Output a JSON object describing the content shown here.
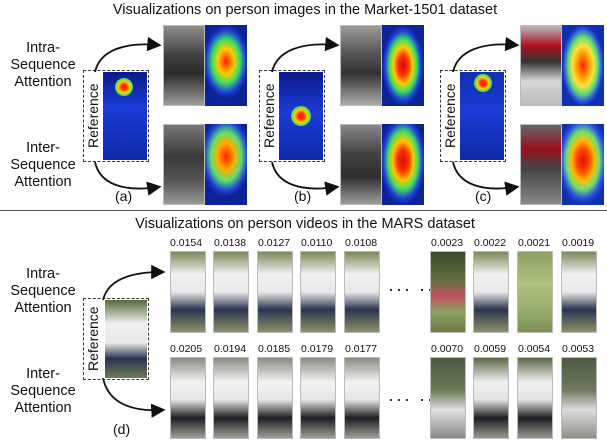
{
  "top": {
    "title": "Visualizations on person images in the Market-1501 dataset",
    "row_labels": {
      "intra": "Intra-\nSequence\nAttention",
      "inter": "Inter-\nSequence\nAttention"
    },
    "reference_label": "Reference",
    "panels": [
      {
        "label": "(a)"
      },
      {
        "label": "(b)"
      },
      {
        "label": "(c)"
      }
    ]
  },
  "bottom": {
    "title": "Visualizations on person videos in the MARS dataset",
    "row_labels": {
      "intra": "Intra-\nSequence\nAttention",
      "inter": "Inter-\nSequence\nAttention"
    },
    "reference_label": "Reference",
    "panel_label": "(d)",
    "intra_scores_left": [
      "0.0154",
      "0.0138",
      "0.0127",
      "0.0110",
      "0.0108"
    ],
    "intra_scores_right": [
      "0.0023",
      "0.0022",
      "0.0021",
      "0.0019"
    ],
    "inter_scores_left": [
      "0.0205",
      "0.0194",
      "0.0185",
      "0.0179",
      "0.0177"
    ],
    "inter_scores_right": [
      "0.0070",
      "0.0059",
      "0.0054",
      "0.0053"
    ],
    "ellipsis": "··· ···"
  }
}
